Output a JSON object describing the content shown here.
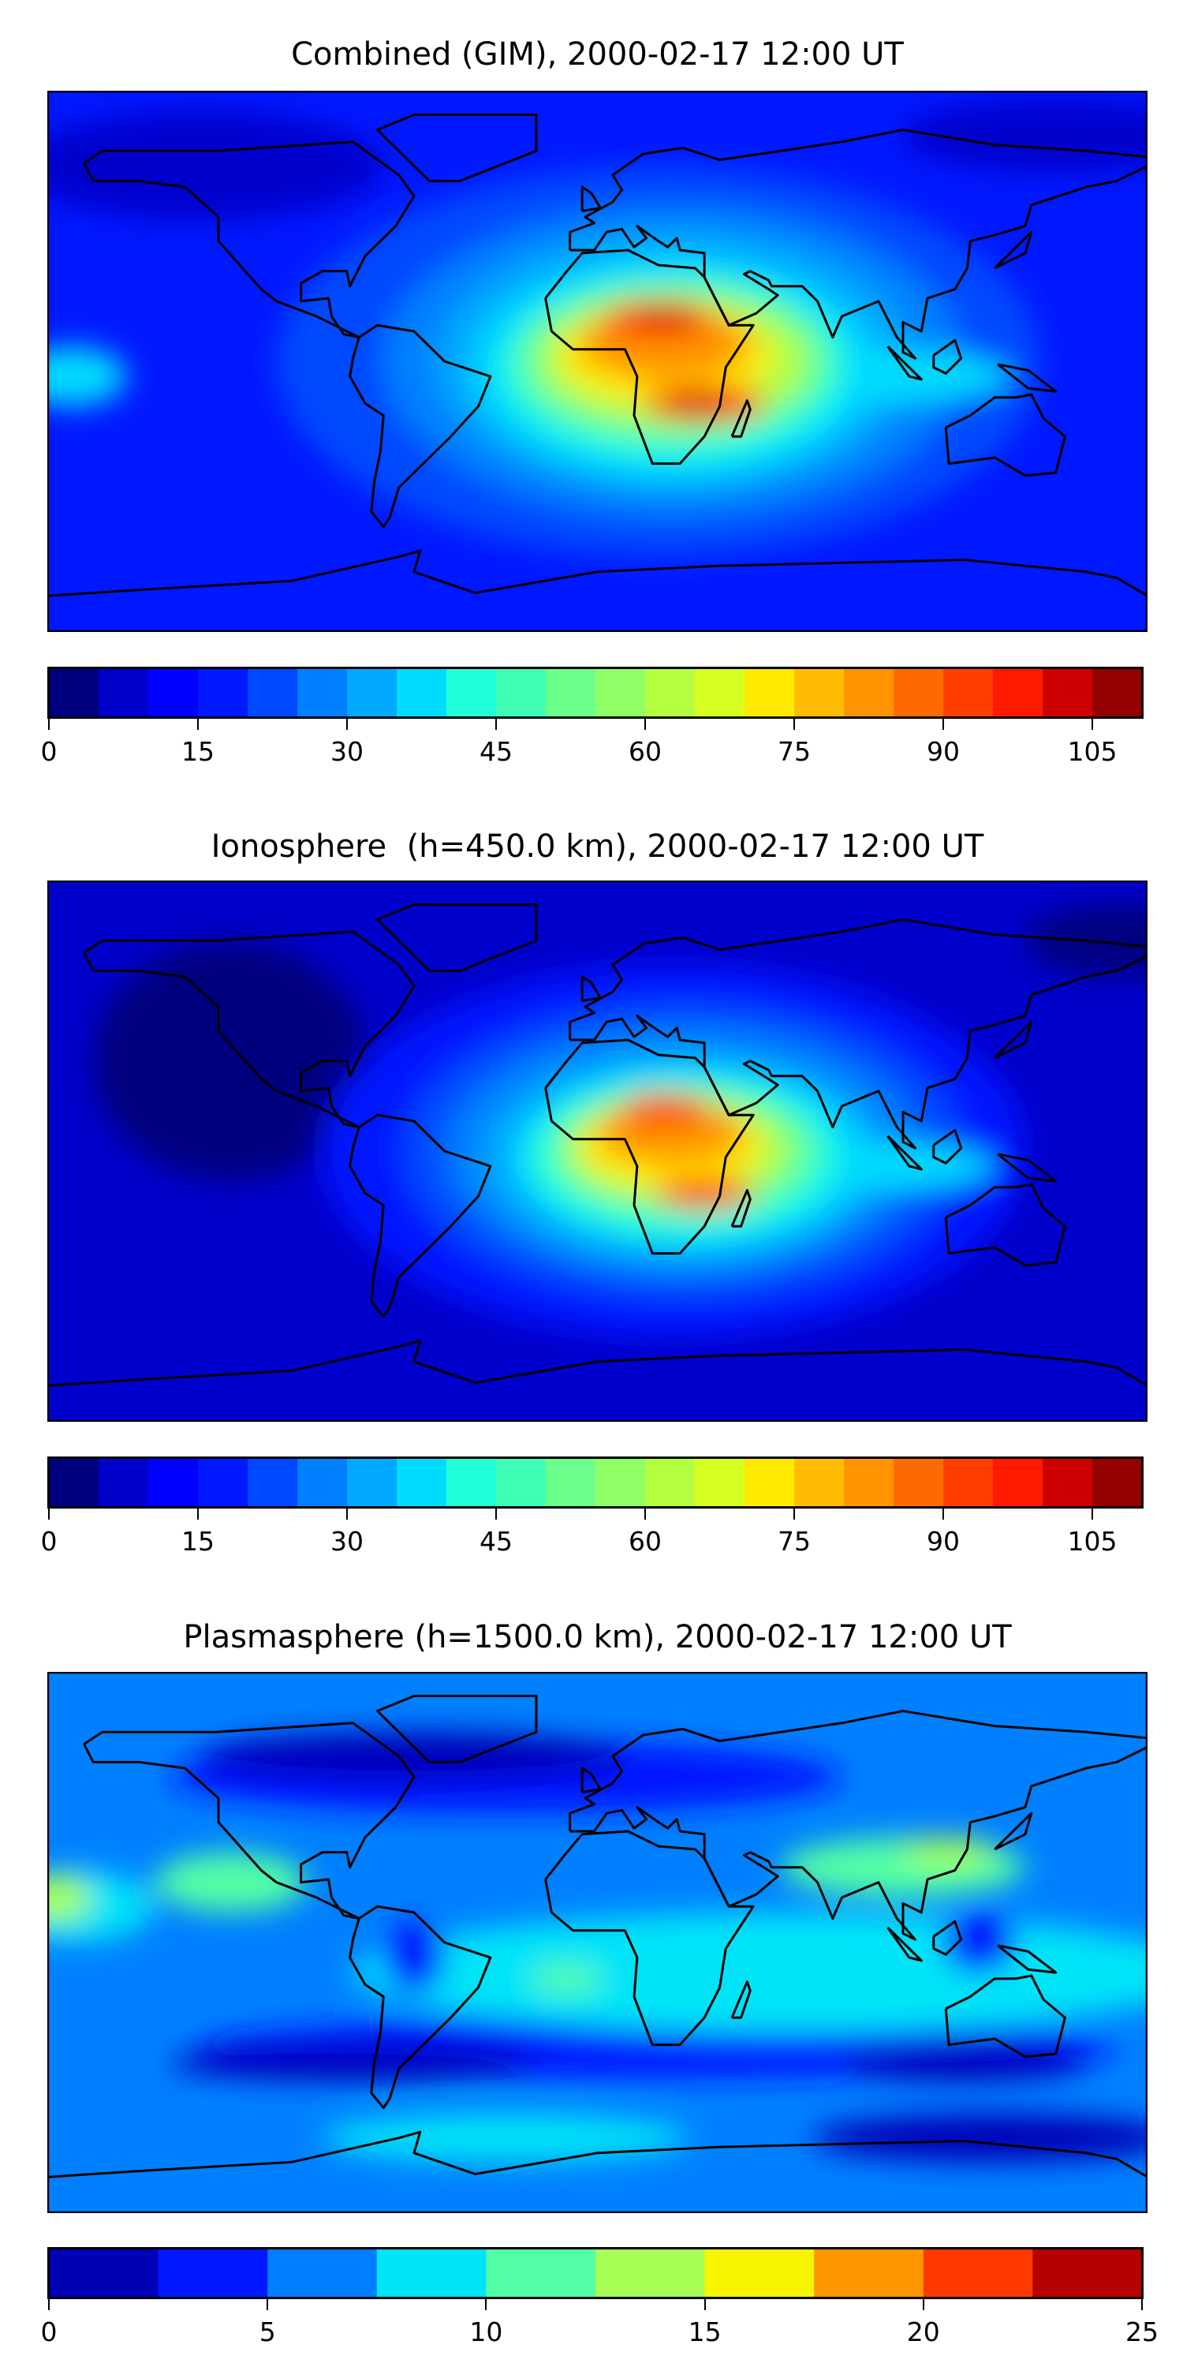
{
  "chart_data": [
    {
      "type": "heatmap",
      "title": "Combined (GIM), 2000-02-17 12:00 UT",
      "colorbar": {
        "range": [
          0,
          110
        ],
        "ticks": [
          "0",
          "15",
          "30",
          "45",
          "60",
          "75",
          "90",
          "105"
        ],
        "tick_values": [
          0,
          15,
          30,
          45,
          60,
          75,
          90,
          105
        ],
        "levels_step": 5,
        "colors": [
          "#00007f",
          "#0000cc",
          "#0000ff",
          "#0018ff",
          "#0048ff",
          "#0080ff",
          "#00a8ff",
          "#00dcfe",
          "#20ffd7",
          "#3fffb7",
          "#6aff8a",
          "#90ff66",
          "#b5ff41",
          "#d7ff20",
          "#ffea00",
          "#ffbc00",
          "#ff9400",
          "#ff6a00",
          "#ff3f00",
          "#ff1900",
          "#cc0000",
          "#940000"
        ]
      },
      "projection": "plate-carree global, coastlines",
      "features": "maximum ~90-100 over northern Africa/Arabia (~15N) and southern Africa (~15S)"
    },
    {
      "type": "heatmap",
      "title": "Ionosphere  (h=450.0 km), 2000-02-17 12:00 UT",
      "colorbar": {
        "range": [
          0,
          110
        ],
        "ticks": [
          "0",
          "15",
          "30",
          "45",
          "60",
          "75",
          "90",
          "105"
        ],
        "tick_values": [
          0,
          15,
          30,
          45,
          60,
          75,
          90,
          105
        ],
        "levels_step": 5,
        "colors": [
          "#00007f",
          "#0000cc",
          "#0000ff",
          "#0018ff",
          "#0048ff",
          "#0080ff",
          "#00a8ff",
          "#00dcfe",
          "#20ffd7",
          "#3fffb7",
          "#6aff8a",
          "#90ff66",
          "#b5ff41",
          "#d7ff20",
          "#ffea00",
          "#ffbc00",
          "#ff9400",
          "#ff6a00",
          "#ff3f00",
          "#ff1900",
          "#cc0000",
          "#940000"
        ]
      },
      "projection": "plate-carree global, coastlines",
      "features": "maximum ~85-90 over northern and southern Africa; minimum over Americas/Pacific"
    },
    {
      "type": "heatmap",
      "title": "Plasmasphere (h=1500.0 km), 2000-02-17 12:00 UT",
      "colorbar": {
        "range": [
          0,
          25
        ],
        "ticks": [
          "0",
          "5",
          "10",
          "15",
          "20",
          "25"
        ],
        "tick_values": [
          0,
          5,
          10,
          15,
          20,
          25
        ],
        "levels_step": 2.5,
        "colors": [
          "#0000b7",
          "#0018ff",
          "#0080ff",
          "#00e4f8",
          "#53ffa6",
          "#a6ff53",
          "#f8f500",
          "#ff9600",
          "#ff3800",
          "#b70000"
        ]
      },
      "projection": "plate-carree global, coastlines",
      "features": "values ~2.5-15, highest ~12.5-15 near Asia and east Pacific"
    }
  ]
}
